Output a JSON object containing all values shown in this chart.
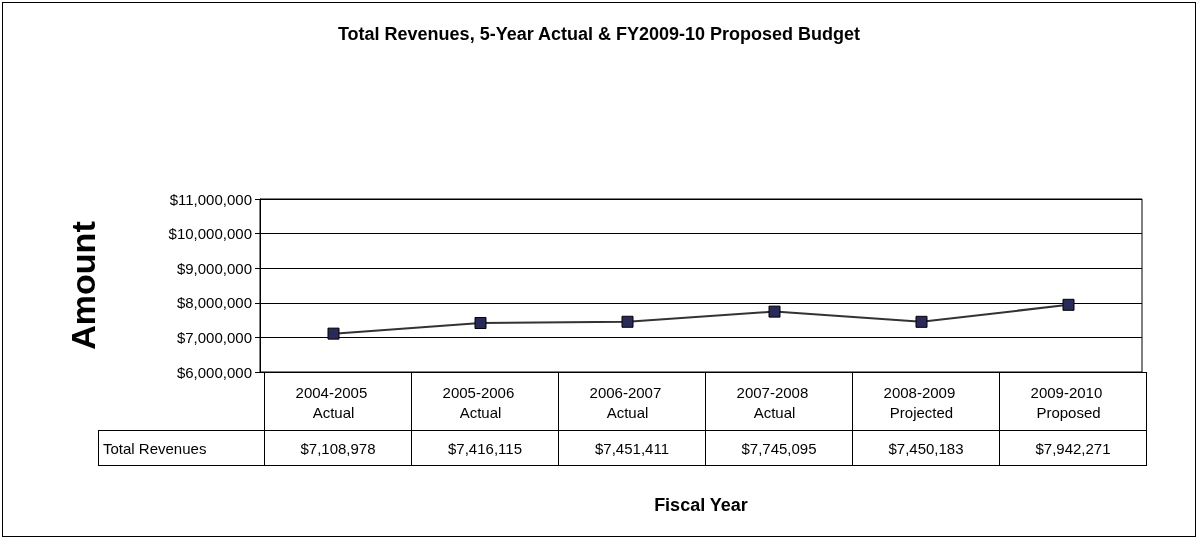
{
  "chart_data": {
    "type": "line",
    "title": "Total Revenues, 5-Year Actual & FY2009-10 Proposed Budget",
    "xlabel": "Fiscal Year",
    "ylabel": "Amount",
    "categories": [
      "2004-2005 Actual",
      "2005-2006 Actual",
      "2006-2007 Actual",
      "2007-2008 Actual",
      "2008-2009 Projected",
      "2009-2010 Proposed"
    ],
    "series": [
      {
        "name": "Total Revenues",
        "color": "#2a2a5a",
        "values": [
          7108978,
          7416115,
          7451411,
          7745095,
          7450183,
          7942271
        ],
        "value_labels": [
          "$7,108,978",
          "$7,416,115",
          "$7,451,411",
          "$7,745,095",
          "$7,450,183",
          "$7,942,271"
        ]
      }
    ],
    "ylim": [
      6000000,
      11000000
    ],
    "yticks": [
      {
        "value": 6000000,
        "label": "$6,000,000"
      },
      {
        "value": 7000000,
        "label": "$7,000,000"
      },
      {
        "value": 8000000,
        "label": "$8,000,000"
      },
      {
        "value": 9000000,
        "label": "$9,000,000"
      },
      {
        "value": 10000000,
        "label": "$10,000,000"
      },
      {
        "value": 11000000,
        "label": "$11,000,000"
      }
    ],
    "grid": "y",
    "marker": "square",
    "line_style": "solid",
    "legend": false
  }
}
